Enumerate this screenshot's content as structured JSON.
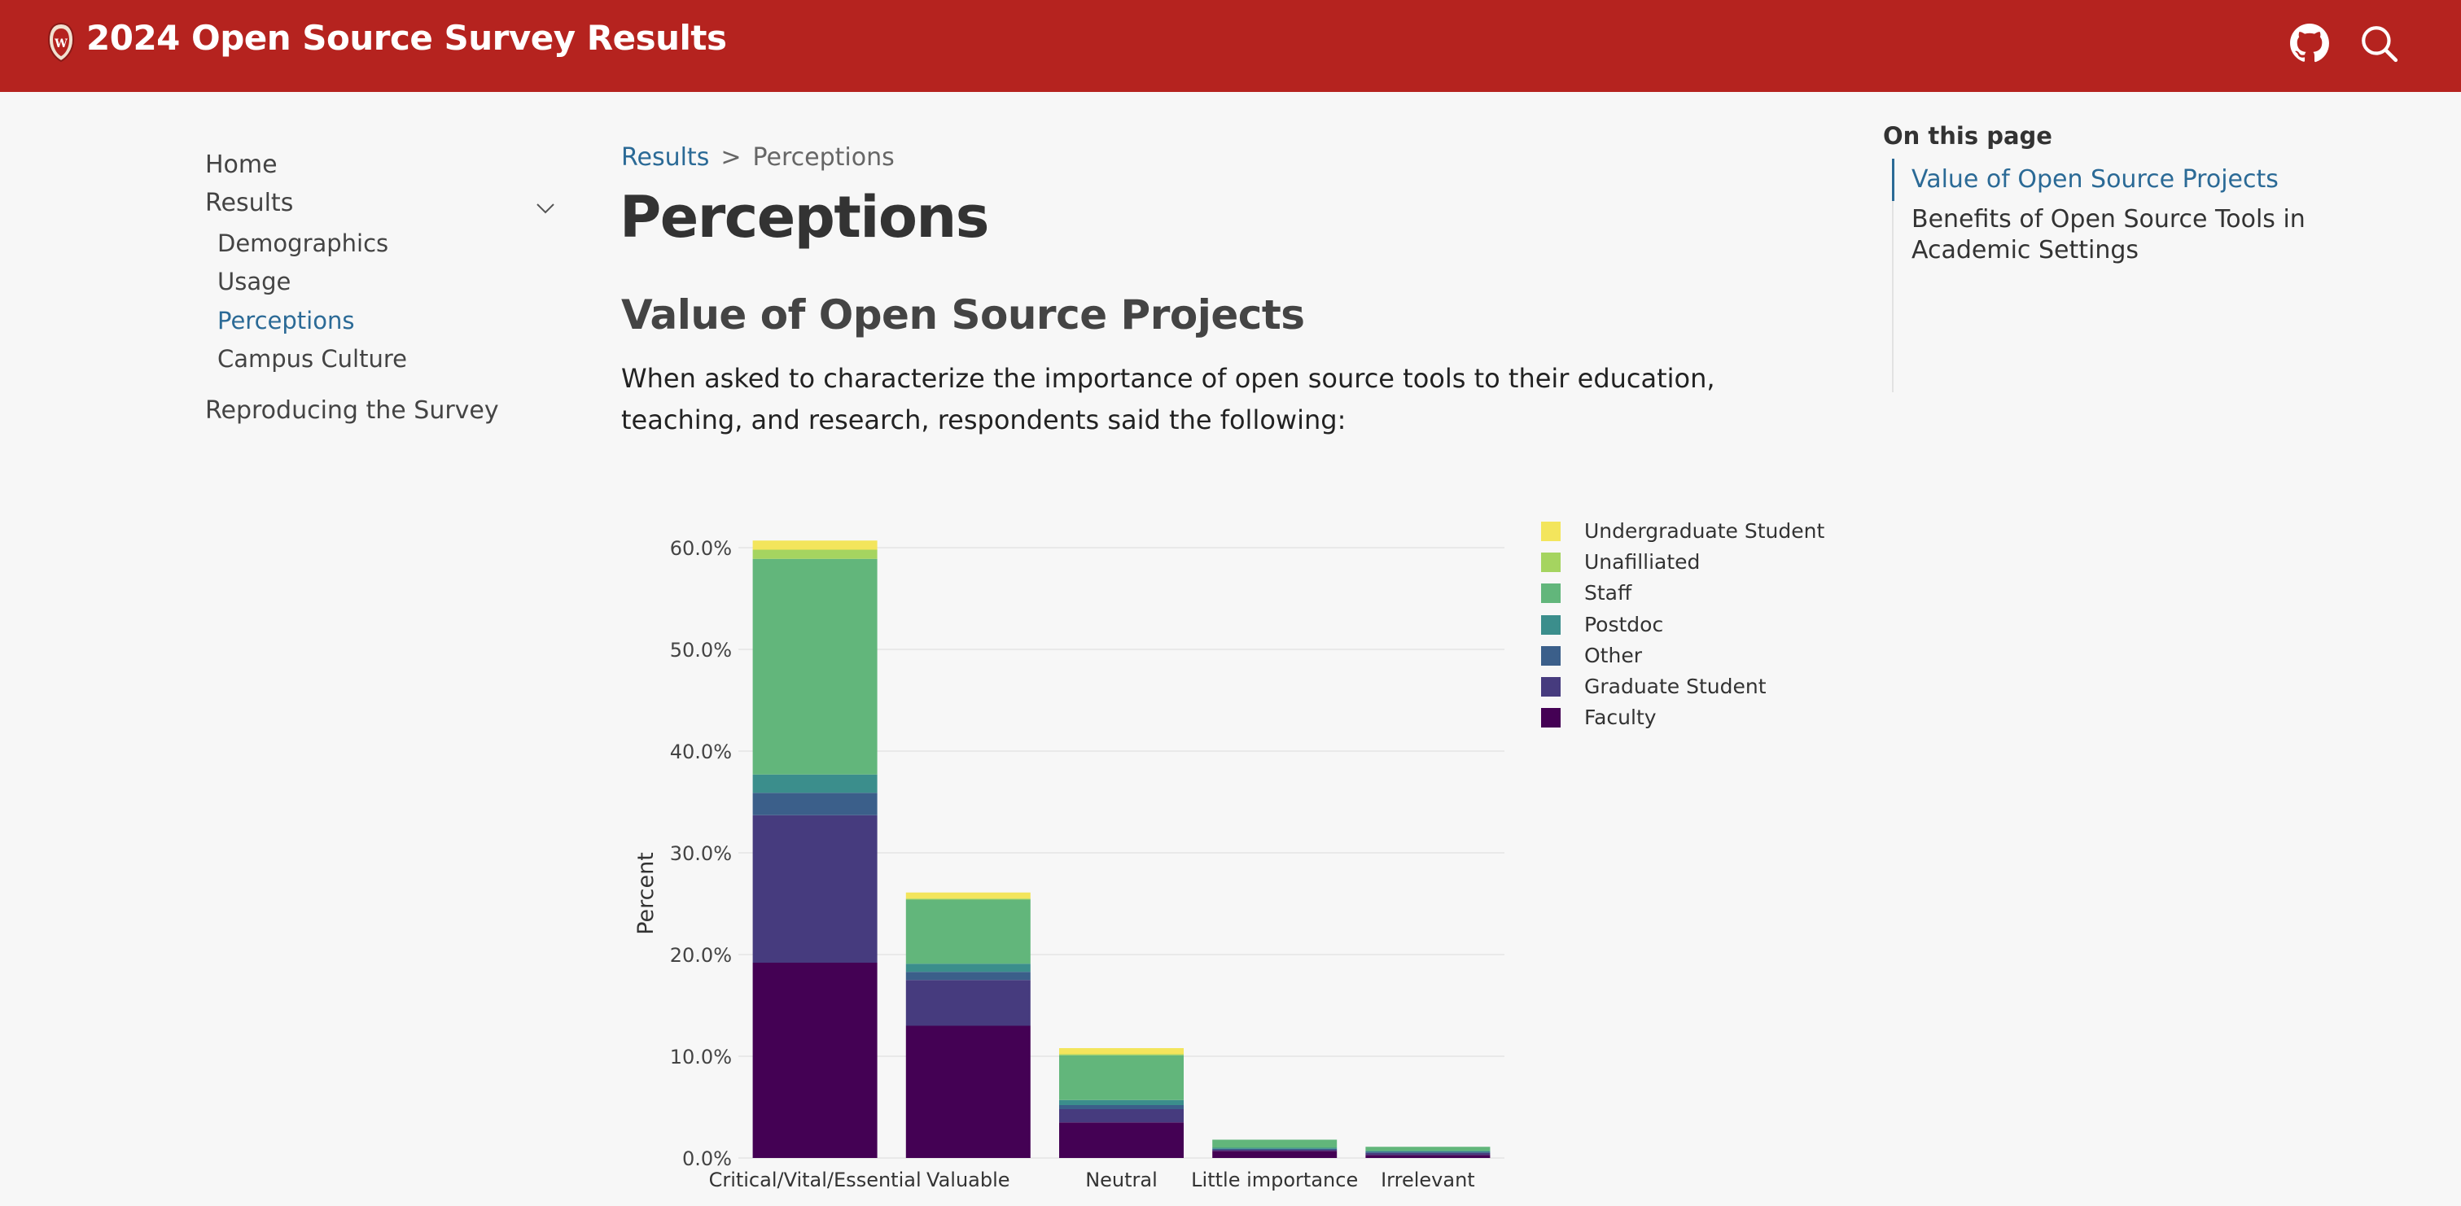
{
  "header": {
    "title": "2024 Open Source Survey Results",
    "github_icon": "github-icon",
    "search_icon": "search-icon",
    "logo_icon": "crest-logo-icon",
    "brand_color": "#b5231f"
  },
  "sidebar": {
    "home": "Home",
    "results": "Results",
    "results_children": [
      "Demographics",
      "Usage",
      "Perceptions",
      "Campus Culture"
    ],
    "reproducing": "Reproducing the Survey",
    "active": "Perceptions"
  },
  "breadcrumb": {
    "parent": "Results",
    "separator": ">",
    "current": "Perceptions"
  },
  "main": {
    "title": "Perceptions",
    "section_title": "Value of Open Source Projects",
    "section_text": "When asked to characterize the importance of open source tools to their education, teaching, and research, respondents said the following:"
  },
  "toc": {
    "heading": "On this page",
    "items": [
      "Value of Open Source Projects",
      "Benefits of Open Source Tools in Academic Settings"
    ]
  },
  "chart_data": {
    "type": "bar",
    "stacked": true,
    "title": "",
    "xlabel": "",
    "ylabel": "Percent",
    "ylim": [
      0,
      60
    ],
    "yticks": [
      "0.0%",
      "10.0%",
      "20.0%",
      "30.0%",
      "40.0%",
      "50.0%",
      "60.0%"
    ],
    "categories": [
      "Critical/Vital/Essential",
      "Valuable",
      "Neutral",
      "Little importance",
      "Irrelevant"
    ],
    "series": [
      {
        "name": "Faculty",
        "color": "#440154",
        "values": [
          19.2,
          13.0,
          3.5,
          0.7,
          0.3
        ]
      },
      {
        "name": "Graduate Student",
        "color": "#463b7e",
        "values": [
          14.5,
          4.5,
          1.3,
          0.1,
          0.2
        ]
      },
      {
        "name": "Other",
        "color": "#3b5f8a",
        "values": [
          2.2,
          0.8,
          0.4,
          0.1,
          0.1
        ]
      },
      {
        "name": "Postdoc",
        "color": "#3b8e8c",
        "values": [
          1.8,
          0.8,
          0.5,
          0.1,
          0.1
        ]
      },
      {
        "name": "Staff",
        "color": "#62b67b",
        "values": [
          21.2,
          6.3,
          4.4,
          0.8,
          0.4
        ]
      },
      {
        "name": "Unafilliated",
        "color": "#a5d460",
        "values": [
          0.9,
          0.1,
          0.1,
          0.0,
          0.0
        ]
      },
      {
        "name": "Undergraduate Student",
        "color": "#f3e55c",
        "values": [
          0.9,
          0.6,
          0.6,
          0.0,
          0.0
        ]
      }
    ],
    "legend_position": "top-right"
  }
}
